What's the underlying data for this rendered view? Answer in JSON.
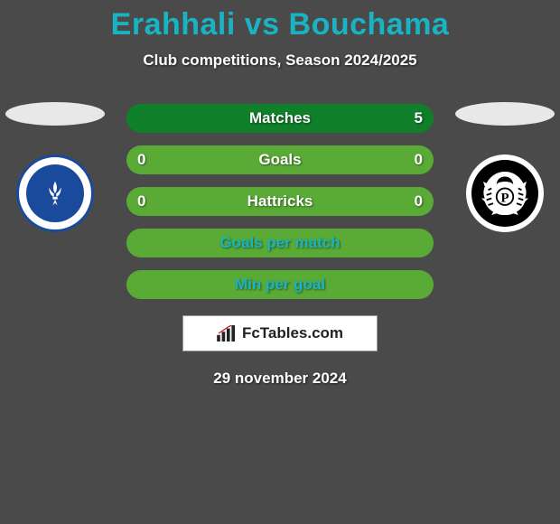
{
  "title": {
    "text": "Erahhali vs Bouchama",
    "color": "#19b3c4"
  },
  "subtitle": "Club competitions, Season 2024/2025",
  "rows": [
    {
      "label": "Matches",
      "left": "",
      "right": "5",
      "bg": "#0f7f2a",
      "labelColor": "#ffffff"
    },
    {
      "label": "Goals",
      "left": "0",
      "right": "0",
      "bg": "#5aab36",
      "labelColor": "#ffffff"
    },
    {
      "label": "Hattricks",
      "left": "0",
      "right": "0",
      "bg": "#5aab36",
      "labelColor": "#ffffff"
    },
    {
      "label": "Goals per match",
      "left": "",
      "right": "",
      "bg": "#5aab36",
      "labelColor": "#19b3c4"
    },
    {
      "label": "Min per goal",
      "left": "",
      "right": "",
      "bg": "#5aab36",
      "labelColor": "#19b3c4"
    }
  ],
  "brand": "FcTables.com",
  "date": "29 november 2024",
  "colors": {
    "background": "#4a4a4a",
    "oval": "#e8e8e8",
    "branding_bg": "#ffffff"
  },
  "clubs": {
    "left": {
      "name": "SV Darmstadt 98",
      "primary": "#1a4a9c",
      "secondary": "#ffffff"
    },
    "right": {
      "name": "Preußen Münster",
      "primary": "#000000",
      "secondary": "#ffffff"
    }
  }
}
